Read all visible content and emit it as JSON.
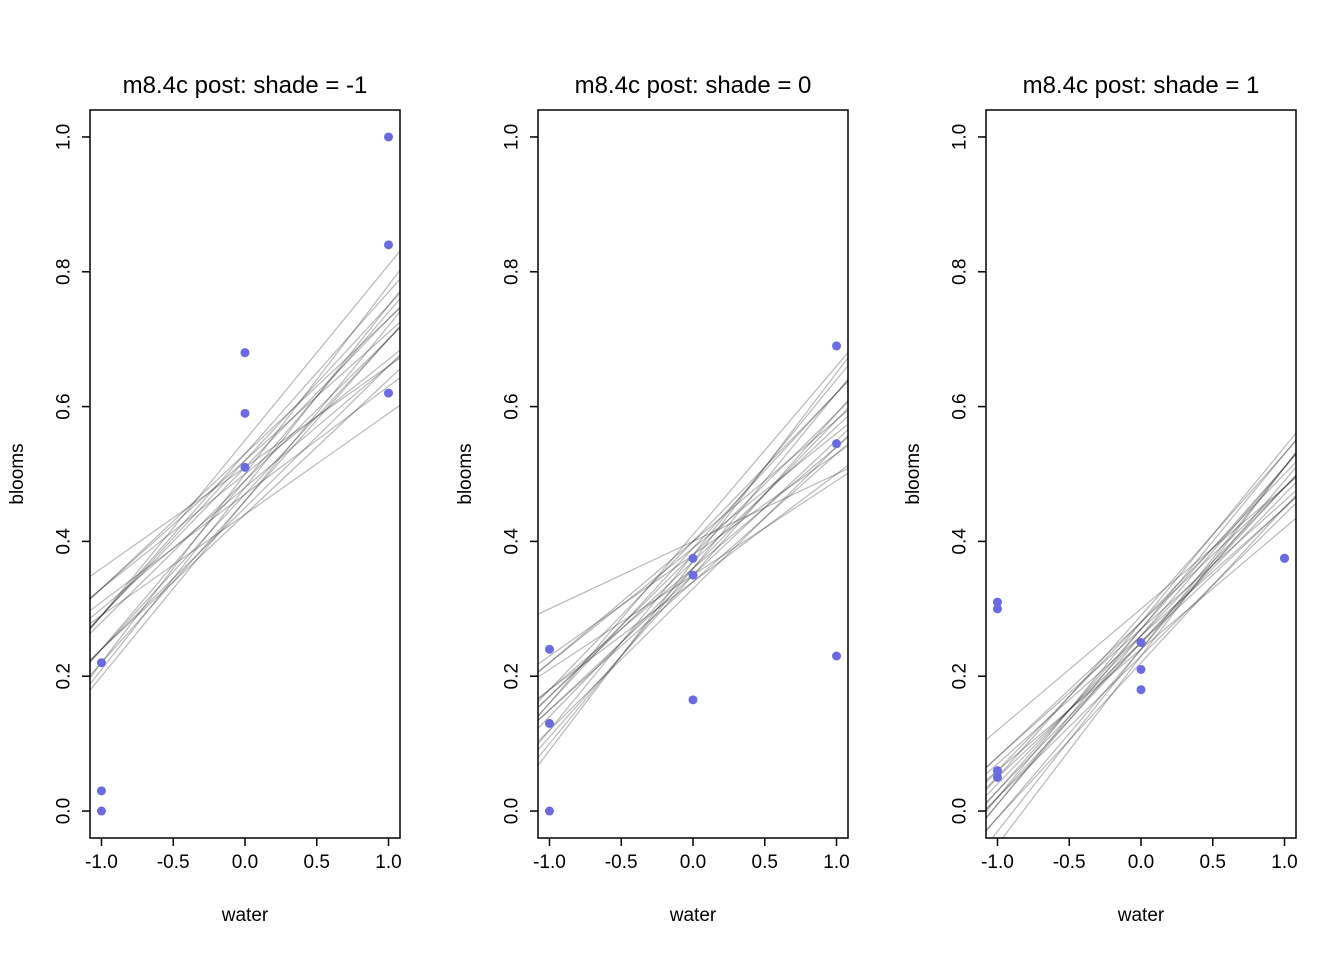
{
  "chart_data": {
    "type": "scatter",
    "description": "Three-panel posterior predictive plot: observed blooms vs water with 20 posterior regression lines per panel, one panel per shade level",
    "xlabel": "water",
    "ylabel": "blooms",
    "x_ticks": [
      -1.0,
      -0.5,
      0.0,
      0.5,
      1.0
    ],
    "y_ticks": [
      0.0,
      0.2,
      0.4,
      0.6,
      0.8,
      1.0
    ],
    "xlim": [
      -1.08,
      1.08
    ],
    "ylim": [
      -0.04,
      1.04
    ],
    "point_color": "#6B6BE1",
    "line_color": "rgba(0,0,0,0.28)",
    "line_model": "y = a + b * water",
    "panels": [
      {
        "title": "m8.4c post: shade = -1",
        "points": [
          [
            -1,
            0.22
          ],
          [
            -1,
            0.03
          ],
          [
            -1,
            0.0
          ],
          [
            0,
            0.68
          ],
          [
            0,
            0.59
          ],
          [
            0,
            0.51
          ],
          [
            1,
            1.0
          ],
          [
            1,
            0.84
          ],
          [
            1,
            0.62
          ]
        ],
        "lines": [
          [
            0.47,
            0.23
          ],
          [
            0.52,
            0.19
          ],
          [
            0.49,
            0.25
          ],
          [
            0.45,
            0.21
          ],
          [
            0.53,
            0.24
          ],
          [
            0.5,
            0.17
          ],
          [
            0.46,
            0.26
          ],
          [
            0.51,
            0.22
          ],
          [
            0.48,
            0.18
          ],
          [
            0.55,
            0.26
          ],
          [
            0.44,
            0.2
          ],
          [
            0.5,
            0.28
          ],
          [
            0.47,
            0.16
          ],
          [
            0.52,
            0.23
          ],
          [
            0.49,
            0.21
          ],
          [
            0.46,
            0.24
          ],
          [
            0.53,
            0.2
          ],
          [
            0.48,
            0.27
          ],
          [
            0.51,
            0.15
          ],
          [
            0.44,
            0.15
          ]
        ]
      },
      {
        "title": "m8.4c post: shade = 0",
        "points": [
          [
            -1,
            0.24
          ],
          [
            -1,
            0.13
          ],
          [
            -1,
            0.0
          ],
          [
            0,
            0.375
          ],
          [
            0,
            0.35
          ],
          [
            0,
            0.165
          ],
          [
            1,
            0.69
          ],
          [
            1,
            0.545
          ],
          [
            1,
            0.23
          ]
        ],
        "lines": [
          [
            0.37,
            0.2
          ],
          [
            0.35,
            0.24
          ],
          [
            0.39,
            0.17
          ],
          [
            0.36,
            0.26
          ],
          [
            0.38,
            0.15
          ],
          [
            0.4,
            0.22
          ],
          [
            0.34,
            0.19
          ],
          [
            0.37,
            0.28
          ],
          [
            0.35,
            0.14
          ],
          [
            0.38,
            0.21
          ],
          [
            0.36,
            0.18
          ],
          [
            0.41,
            0.25
          ],
          [
            0.33,
            0.21
          ],
          [
            0.39,
            0.23
          ],
          [
            0.4,
            0.1
          ],
          [
            0.35,
            0.2
          ],
          [
            0.4,
            0.18
          ],
          [
            0.36,
            0.22
          ],
          [
            0.38,
            0.26
          ],
          [
            0.34,
            0.16
          ]
        ]
      },
      {
        "title": "m8.4c post: shade = 1",
        "points": [
          [
            -1,
            0.31
          ],
          [
            -1,
            0.3
          ],
          [
            -1,
            0.06
          ],
          [
            -1,
            0.05
          ],
          [
            0,
            0.25
          ],
          [
            0,
            0.21
          ],
          [
            0,
            0.18
          ],
          [
            1,
            0.375
          ],
          [
            1,
            0.375
          ]
        ],
        "lines": [
          [
            0.26,
            0.22
          ],
          [
            0.24,
            0.25
          ],
          [
            0.28,
            0.2
          ],
          [
            0.25,
            0.23
          ],
          [
            0.27,
            0.26
          ],
          [
            0.23,
            0.21
          ],
          [
            0.29,
            0.24
          ],
          [
            0.26,
            0.19
          ],
          [
            0.24,
            0.27
          ],
          [
            0.28,
            0.22
          ],
          [
            0.25,
            0.2
          ],
          [
            0.27,
            0.24
          ],
          [
            0.22,
            0.23
          ],
          [
            0.3,
            0.18
          ],
          [
            0.26,
            0.25
          ],
          [
            0.24,
            0.18
          ],
          [
            0.28,
            0.26
          ],
          [
            0.25,
            0.22
          ],
          [
            0.27,
            0.19
          ],
          [
            0.23,
            0.28
          ]
        ]
      }
    ]
  }
}
